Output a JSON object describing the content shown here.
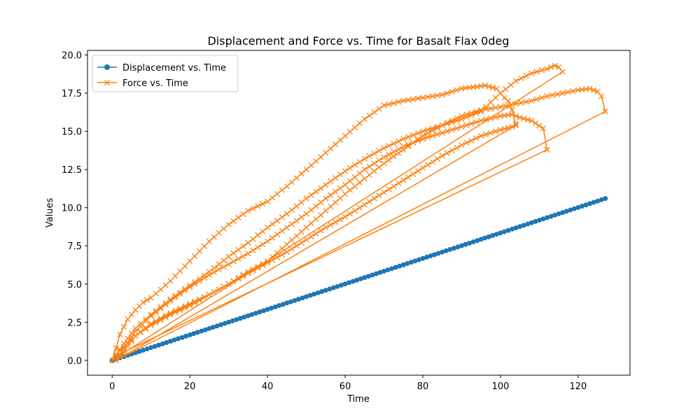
{
  "chart_data": {
    "type": "line",
    "title": "Displacement and Force vs. Time for Basalt Flax 0deg",
    "xlabel": "Time",
    "ylabel": "Values",
    "xlim": [
      -6.35,
      133.35
    ],
    "ylim": [
      -0.97,
      20.3
    ],
    "xticks": [
      0,
      20,
      40,
      60,
      80,
      100,
      120
    ],
    "xtick_labels": [
      "0",
      "20",
      "40",
      "60",
      "80",
      "100",
      "120"
    ],
    "yticks": [
      0.0,
      2.5,
      5.0,
      7.5,
      10.0,
      12.5,
      15.0,
      17.5,
      20.0
    ],
    "ytick_labels": [
      "0.0",
      "2.5",
      "5.0",
      "7.5",
      "10.0",
      "12.5",
      "15.0",
      "17.5",
      "20.0"
    ],
    "grid": false,
    "legend_position": "top-left",
    "series": [
      {
        "name": "Displacement vs. Time",
        "color": "#1f77b4",
        "marker": "circle",
        "x": [
          0,
          127
        ],
        "y": [
          0.0,
          10.6
        ],
        "n_points": 128
      },
      {
        "name": "Force vs. Time",
        "color": "#ff7f0e",
        "marker": "x",
        "segments": [
          {
            "x": [
              0,
              1,
              2,
              3,
              4,
              6,
              8,
              10,
              15,
              20,
              25,
              30,
              35,
              40,
              45,
              50,
              55,
              60,
              65,
              70,
              75,
              80,
              85,
              90,
              93,
              96,
              99,
              100,
              101,
              102,
              103,
              104
            ],
            "y": [
              0.0,
              0.8,
              1.7,
              2.2,
              2.7,
              3.3,
              3.8,
              4.1,
              5.2,
              6.5,
              7.8,
              8.9,
              9.8,
              10.4,
              11.4,
              12.5,
              13.6,
              14.7,
              15.8,
              16.7,
              17.0,
              17.2,
              17.4,
              17.8,
              17.9,
              18.0,
              17.8,
              17.5,
              17.2,
              17.0,
              16.4,
              15.4
            ]
          },
          {
            "x": [
              104,
              1,
              3,
              6,
              10,
              15,
              20,
              25,
              30,
              35,
              40,
              45,
              50,
              55,
              60,
              65,
              70,
              75,
              80,
              85,
              90,
              95,
              100,
              104,
              108,
              112,
              116,
              120,
              123,
              125,
              126,
              127
            ],
            "y": [
              15.4,
              0.0,
              0.6,
              1.6,
              2.4,
              3.1,
              3.7,
              4.3,
              5.0,
              5.8,
              6.5,
              7.6,
              8.7,
              9.8,
              10.9,
              11.9,
              12.9,
              13.8,
              14.7,
              15.4,
              16.0,
              16.4,
              16.6,
              16.8,
              17.0,
              17.3,
              17.5,
              17.7,
              17.8,
              17.6,
              17.3,
              16.3
            ]
          },
          {
            "x": [
              127,
              1,
              3,
              6,
              10,
              15,
              20,
              25,
              30,
              35,
              40,
              45,
              50,
              55,
              60,
              65,
              70,
              75,
              80,
              85,
              90,
              95,
              100,
              103,
              105,
              108,
              111,
              112
            ],
            "y": [
              16.3,
              0.0,
              0.8,
              1.9,
              2.9,
              3.9,
              4.8,
              5.6,
              6.3,
              7.0,
              7.8,
              8.7,
              9.6,
              10.6,
              11.5,
              12.5,
              13.3,
              14.0,
              14.5,
              14.9,
              15.3,
              15.7,
              16.0,
              16.1,
              15.9,
              15.7,
              15.2,
              13.8
            ]
          },
          {
            "x": [
              112,
              1,
              3,
              6,
              10,
              15,
              20,
              25,
              30,
              35,
              40,
              45,
              50,
              55,
              60,
              65,
              70,
              75,
              80,
              85,
              90,
              95,
              100,
              104,
              108,
              112,
              114,
              115,
              116
            ],
            "y": [
              13.8,
              0.3,
              1.1,
              2.1,
              3.0,
              4.0,
              4.9,
              5.8,
              6.8,
              7.7,
              8.7,
              9.6,
              10.6,
              11.5,
              12.4,
              13.2,
              13.9,
              14.5,
              15.0,
              15.4,
              15.8,
              16.3,
              17.5,
              18.3,
              18.8,
              19.1,
              19.3,
              19.2,
              18.9
            ]
          },
          {
            "x": [
              0,
              1,
              3,
              6,
              10,
              15,
              20,
              25,
              30,
              35,
              40,
              45,
              50,
              55,
              60,
              65,
              70,
              75,
              80,
              85,
              90,
              95,
              100,
              103,
              104
            ],
            "y": [
              0.0,
              0.4,
              0.9,
              1.6,
              2.3,
              3.0,
              3.6,
              4.3,
              5.0,
              5.7,
              6.4,
              7.1,
              7.9,
              8.7,
              9.4,
              10.2,
              11.0,
              11.8,
              12.6,
              13.4,
              14.1,
              14.7,
              15.1,
              15.3,
              15.5
            ]
          }
        ]
      }
    ]
  }
}
